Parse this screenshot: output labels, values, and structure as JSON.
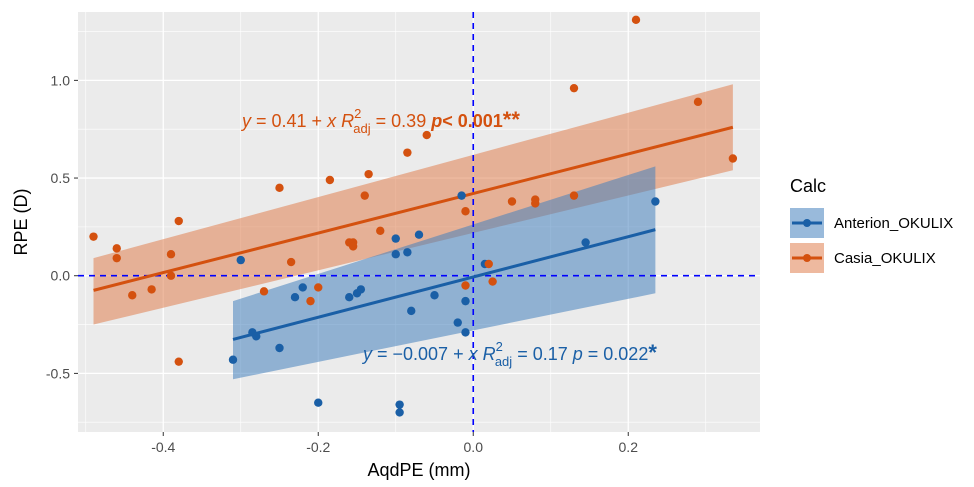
{
  "chart_data": {
    "type": "scatter",
    "xlabel": "AqdPE (mm)",
    "ylabel": "RPE (D)",
    "xlim": [
      -0.51,
      0.37
    ],
    "ylim": [
      -0.8,
      1.35
    ],
    "x_ticks": [
      -0.4,
      -0.2,
      0.0,
      0.2
    ],
    "x_tick_labels": [
      "-0.4",
      "-0.2",
      "0.0",
      "0.2"
    ],
    "y_ticks": [
      -0.5,
      0.0,
      0.5,
      1.0
    ],
    "y_tick_labels": [
      "-0.5",
      "0.0",
      "0.5",
      "1.0"
    ],
    "x_minor": [
      -0.5,
      -0.3,
      -0.1,
      0.1,
      0.3
    ],
    "y_minor": [
      -0.75,
      -0.25,
      0.25,
      0.75,
      1.25
    ],
    "grid": true,
    "panel_background": "#ebebeb",
    "reference_lines": {
      "x": 0,
      "y": 0,
      "color": "#0000ff",
      "style": "dashed"
    },
    "legend": {
      "title": "Calc",
      "position": "right",
      "entries": [
        "Anterion_OKULIX",
        "Casia_OKULIX"
      ]
    },
    "series": [
      {
        "name": "Anterion_OKULIX",
        "color": "#1a5fa6",
        "points": [
          [
            -0.31,
            -0.43
          ],
          [
            -0.3,
            0.08
          ],
          [
            -0.285,
            -0.29
          ],
          [
            -0.28,
            -0.31
          ],
          [
            -0.25,
            -0.37
          ],
          [
            -0.23,
            -0.11
          ],
          [
            -0.22,
            -0.06
          ],
          [
            -0.2,
            -0.65
          ],
          [
            -0.16,
            -0.11
          ],
          [
            -0.15,
            -0.09
          ],
          [
            -0.145,
            -0.07
          ],
          [
            -0.1,
            0.11
          ],
          [
            -0.1,
            0.19
          ],
          [
            -0.095,
            -0.66
          ],
          [
            -0.095,
            -0.7
          ],
          [
            -0.085,
            0.12
          ],
          [
            -0.08,
            -0.18
          ],
          [
            -0.07,
            0.21
          ],
          [
            -0.05,
            -0.1
          ],
          [
            -0.02,
            -0.24
          ],
          [
            -0.015,
            0.41
          ],
          [
            -0.01,
            -0.29
          ],
          [
            -0.01,
            -0.13
          ],
          [
            0.015,
            0.06
          ],
          [
            0.145,
            0.17
          ],
          [
            0.235,
            0.38
          ]
        ],
        "fit": {
          "x_range": [
            -0.31,
            0.235
          ],
          "y_range": [
            -0.326,
            0.236
          ],
          "ci_upper": [
            -0.13,
            0.56
          ],
          "ci_lower": [
            -0.53,
            -0.09
          ]
        },
        "annotation": {
          "slope": "-0.007",
          "r2": "0.17",
          "p": "0.022",
          "stars": "*"
        }
      },
      {
        "name": "Casia_OKULIX",
        "color": "#d4510f",
        "points": [
          [
            -0.49,
            0.2
          ],
          [
            -0.46,
            0.14
          ],
          [
            -0.46,
            0.09
          ],
          [
            -0.44,
            -0.1
          ],
          [
            -0.415,
            -0.07
          ],
          [
            -0.39,
            0.11
          ],
          [
            -0.39,
            0.0
          ],
          [
            -0.38,
            0.28
          ],
          [
            -0.38,
            -0.44
          ],
          [
            -0.27,
            -0.08
          ],
          [
            -0.25,
            0.45
          ],
          [
            -0.235,
            0.07
          ],
          [
            -0.21,
            -0.13
          ],
          [
            -0.2,
            -0.06
          ],
          [
            -0.185,
            0.49
          ],
          [
            -0.16,
            0.17
          ],
          [
            -0.155,
            0.17
          ],
          [
            -0.155,
            0.15
          ],
          [
            -0.14,
            0.41
          ],
          [
            -0.135,
            0.52
          ],
          [
            -0.12,
            0.23
          ],
          [
            -0.085,
            0.63
          ],
          [
            -0.06,
            0.72
          ],
          [
            -0.01,
            -0.05
          ],
          [
            -0.01,
            0.33
          ],
          [
            0.02,
            0.06
          ],
          [
            0.025,
            -0.03
          ],
          [
            0.05,
            0.38
          ],
          [
            0.08,
            0.37
          ],
          [
            0.08,
            0.39
          ],
          [
            0.13,
            0.41
          ],
          [
            0.13,
            0.96
          ],
          [
            0.21,
            1.31
          ],
          [
            0.29,
            0.89
          ],
          [
            0.335,
            0.6
          ]
        ],
        "fit": {
          "x_range": [
            -0.49,
            0.335
          ],
          "y_range": [
            -0.075,
            0.76
          ],
          "ci_upper": [
            0.09,
            0.98
          ],
          "ci_lower": [
            -0.25,
            0.54
          ]
        },
        "annotation": {
          "slope": "0.41",
          "r2": "0.39",
          "p": "0.001",
          "stars": "**"
        }
      }
    ]
  }
}
